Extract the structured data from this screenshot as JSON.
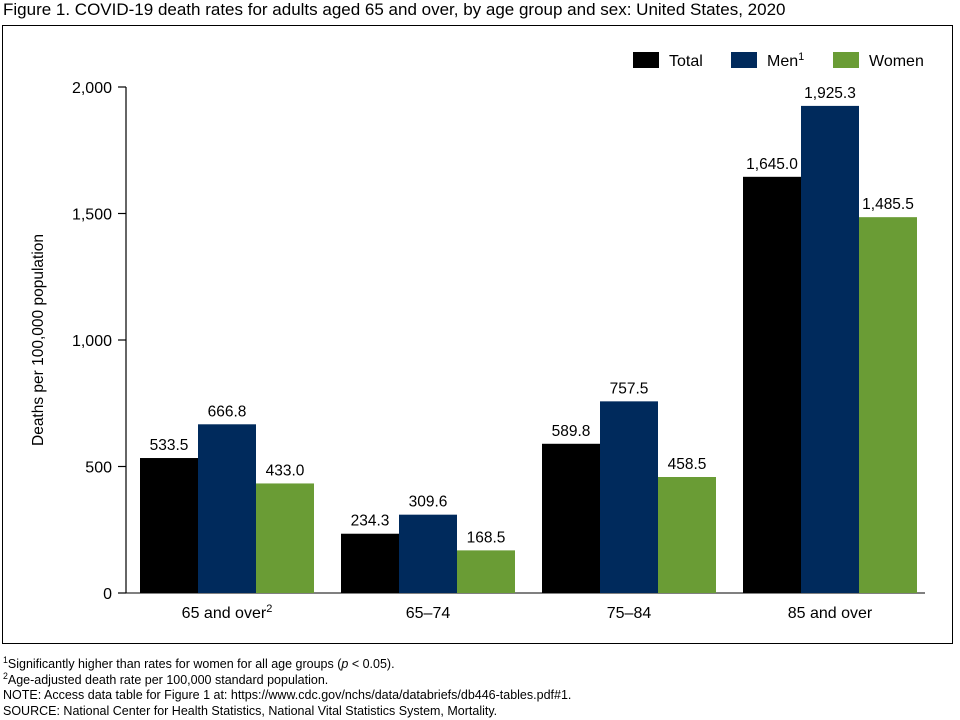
{
  "figure_title": "Figure 1. COVID-19 death rates for adults aged 65 and over, by age group and sex: United States, 2020",
  "colors": {
    "Total": "#000000",
    "Men": "#002a5c",
    "Women": "#6a9c35"
  },
  "chart_data": {
    "type": "bar",
    "title": "",
    "xlabel": "",
    "ylabel": "Deaths per 100,000 population",
    "ylim": [
      0,
      2000
    ],
    "yticks": [
      0,
      500,
      1000,
      1500,
      2000
    ],
    "ytick_labels": [
      "0",
      "500",
      "1,000",
      "1,500",
      "2,000"
    ],
    "categories": [
      "65 and over",
      "65–74",
      "75–84",
      "85 and over"
    ],
    "category_superscripts": [
      "2",
      "",
      "",
      ""
    ],
    "series": [
      {
        "name": "Total",
        "legend_label": "Total",
        "legend_superscript": "",
        "color": "#000000",
        "values": [
          533.5,
          234.3,
          589.8,
          1645.0
        ],
        "value_labels": [
          "533.5",
          "234.3",
          "589.8",
          "1,645.0"
        ]
      },
      {
        "name": "Men",
        "legend_label": "Men",
        "legend_superscript": "1",
        "color": "#002a5c",
        "values": [
          666.8,
          309.6,
          757.5,
          1925.3
        ],
        "value_labels": [
          "666.8",
          "309.6",
          "757.5",
          "1,925.3"
        ]
      },
      {
        "name": "Women",
        "legend_label": "Women",
        "legend_superscript": "",
        "color": "#6a9c35",
        "values": [
          433.0,
          168.5,
          458.5,
          1485.5
        ],
        "value_labels": [
          "433.0",
          "168.5",
          "458.5",
          "1,485.5"
        ]
      }
    ],
    "legend_position": "top-right",
    "grid": false
  },
  "footnotes": [
    {
      "sup": "1",
      "text": "Significantly higher than rates for women for all age groups (",
      "italic": "p",
      "tail": " < 0.05)."
    },
    {
      "sup": "2",
      "text": "Age-adjusted death rate per 100,000 standard population.",
      "italic": "",
      "tail": ""
    },
    {
      "sup": "",
      "text": "NOTE: Access data table for Figure 1 at: https://www.cdc.gov/nchs/data/databriefs/db446-tables.pdf#1.",
      "italic": "",
      "tail": ""
    },
    {
      "sup": "",
      "text": "SOURCE: National Center for Health Statistics, National Vital Statistics System, Mortality.",
      "italic": "",
      "tail": ""
    }
  ]
}
